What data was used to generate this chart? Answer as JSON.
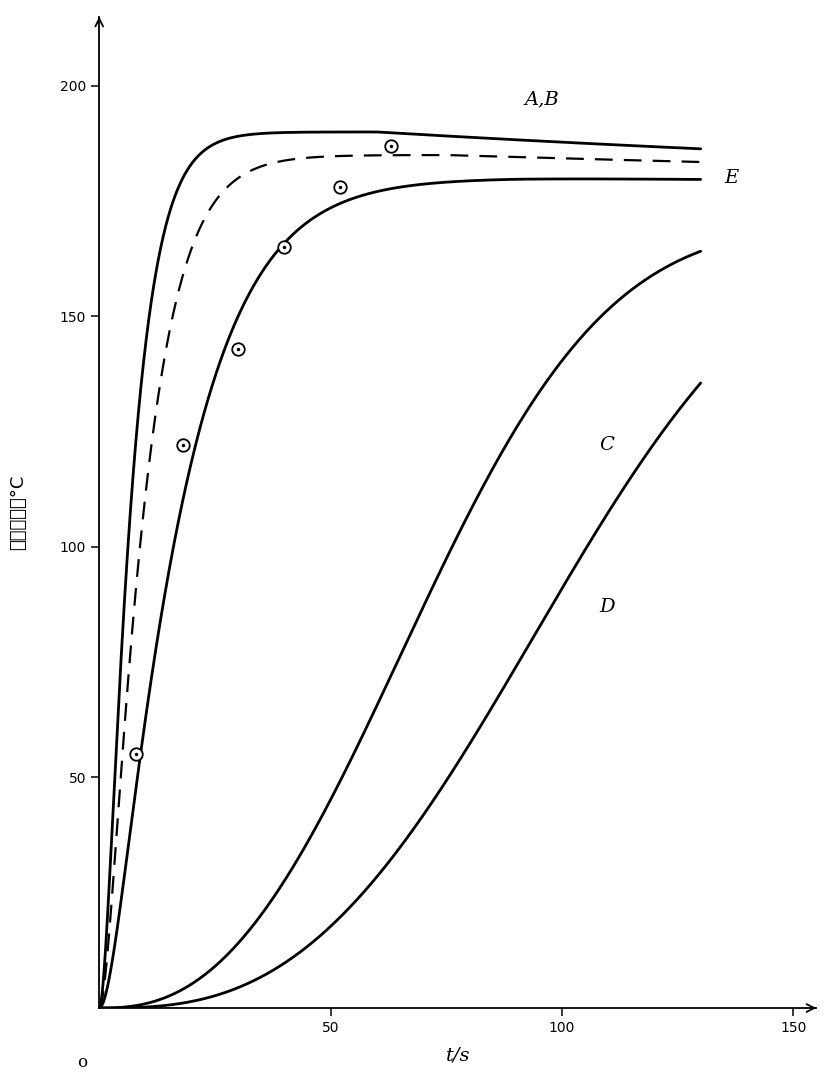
{
  "xlabel": "t/s",
  "ylabel": "起动温升／°C",
  "xlim_max": 155,
  "ylim_max": 215,
  "xticks": [
    50,
    100,
    150
  ],
  "yticks": [
    50,
    100,
    150,
    200
  ],
  "bg_color": "#ffffff",
  "lc": "#000000",
  "lw": 2.0,
  "lw_d": 1.6,
  "label_A": "A,B",
  "label_E": "E",
  "label_C": "C",
  "label_D": "D",
  "lab_AB_x": 92,
  "lab_AB_y": 197,
  "lab_E_x": 135,
  "lab_E_y": 180,
  "lab_C_x": 108,
  "lab_C_y": 122,
  "lab_D_x": 108,
  "lab_D_y": 87,
  "circ_t": [
    8,
    18,
    30,
    40,
    52,
    63
  ],
  "circ_y": [
    55,
    122,
    143,
    165,
    178,
    187
  ]
}
